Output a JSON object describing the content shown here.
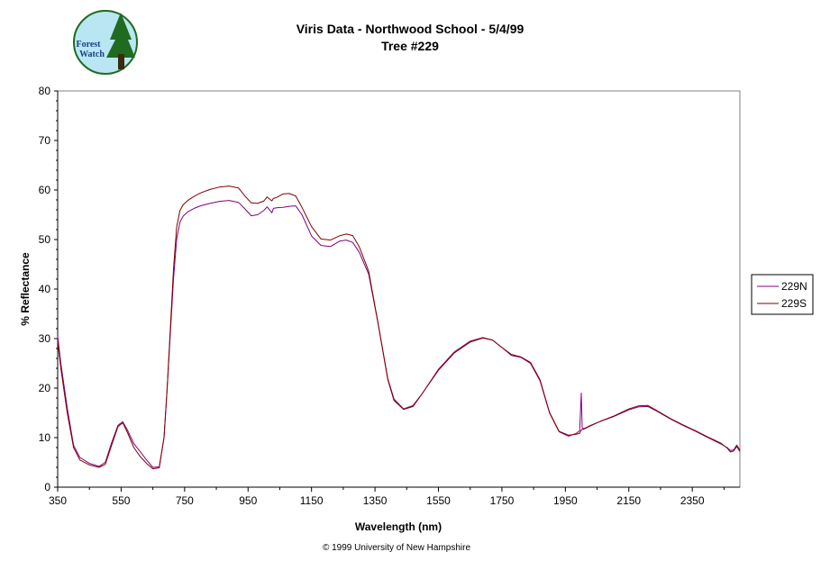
{
  "logo": {
    "line1": "Forest",
    "line2": "Watch",
    "colors": {
      "circle": "#b9e6f2",
      "tree": "#1f6b1f"
    }
  },
  "chart_data": {
    "type": "line",
    "title": "Viris Data - Northwood School - 5/4/99",
    "subtitle": "Tree #229",
    "xlabel": "Wavelength (nm)",
    "ylabel": "% Reflectance",
    "xlim": [
      350,
      2500
    ],
    "ylim": [
      0,
      80
    ],
    "xticks": [
      350,
      550,
      750,
      950,
      1150,
      1350,
      1550,
      1750,
      1950,
      2150,
      2350
    ],
    "yticks": [
      0,
      10,
      20,
      30,
      40,
      50,
      60,
      70,
      80
    ],
    "grid": false,
    "legend_position": "right",
    "series": [
      {
        "name": "229N",
        "color": "#800080",
        "x": [
          350,
          360,
          380,
          400,
          420,
          450,
          480,
          500,
          520,
          540,
          555,
          570,
          590,
          610,
          630,
          650,
          670,
          685,
          695,
          705,
          715,
          725,
          735,
          745,
          760,
          780,
          800,
          830,
          860,
          890,
          920,
          940,
          960,
          980,
          1000,
          1010,
          1025,
          1030,
          1040,
          1060,
          1080,
          1100,
          1120,
          1150,
          1180,
          1210,
          1240,
          1260,
          1280,
          1300,
          1330,
          1360,
          1390,
          1410,
          1440,
          1470,
          1500,
          1550,
          1600,
          1650,
          1690,
          1720,
          1750,
          1780,
          1810,
          1840,
          1870,
          1900,
          1930,
          1960,
          1985,
          1995,
          2000,
          2003,
          2008,
          2030,
          2060,
          2100,
          2150,
          2180,
          2210,
          2240,
          2280,
          2320,
          2360,
          2400,
          2440,
          2460,
          2470,
          2480,
          2490,
          2500
        ],
        "y": [
          30.5,
          25,
          16,
          8.5,
          6,
          4.8,
          4.2,
          5,
          9,
          12.5,
          13.2,
          11.5,
          8.8,
          7.2,
          5.5,
          4,
          4.1,
          10,
          20,
          31,
          42,
          50,
          53.5,
          54.7,
          55.6,
          56.3,
          56.8,
          57.3,
          57.7,
          57.9,
          57.5,
          56.2,
          54.8,
          55,
          55.9,
          56.6,
          55.4,
          56.3,
          56.4,
          56.5,
          56.7,
          56.8,
          55,
          50.7,
          48.8,
          48.6,
          49.7,
          49.9,
          49.4,
          47.5,
          43,
          33,
          22,
          17.8,
          15.8,
          16.5,
          19,
          23.8,
          27.3,
          29.5,
          30.2,
          29.7,
          28.2,
          26.6,
          26.2,
          25,
          21.5,
          15,
          11.2,
          10.3,
          10.9,
          11.4,
          19,
          12,
          11.8,
          12.5,
          13.3,
          14.2,
          15.6,
          16.2,
          16.3,
          15.3,
          13.8,
          12.5,
          11.3,
          10,
          8.7,
          8,
          7.4,
          7.5,
          8.5,
          7.5
        ]
      },
      {
        "name": "229S",
        "color": "#800000",
        "x": [
          350,
          360,
          380,
          400,
          420,
          450,
          480,
          500,
          520,
          540,
          555,
          570,
          590,
          610,
          630,
          650,
          670,
          685,
          695,
          705,
          715,
          725,
          735,
          745,
          760,
          780,
          800,
          830,
          860,
          890,
          920,
          940,
          960,
          980,
          1000,
          1010,
          1025,
          1030,
          1040,
          1060,
          1080,
          1100,
          1120,
          1150,
          1180,
          1210,
          1240,
          1260,
          1280,
          1300,
          1330,
          1360,
          1390,
          1410,
          1440,
          1470,
          1500,
          1550,
          1600,
          1650,
          1690,
          1720,
          1750,
          1780,
          1810,
          1840,
          1870,
          1900,
          1930,
          1960,
          1985,
          1995,
          2000,
          2003,
          2008,
          2030,
          2060,
          2100,
          2150,
          2180,
          2210,
          2240,
          2280,
          2320,
          2360,
          2400,
          2440,
          2460,
          2470,
          2480,
          2490,
          2500
        ],
        "y": [
          29.5,
          24,
          15,
          8,
          5.5,
          4.5,
          4,
          4.6,
          8.5,
          12.2,
          13,
          11,
          8,
          6.2,
          4.8,
          3.7,
          3.9,
          10,
          20,
          32,
          44,
          52.5,
          55.8,
          57,
          57.9,
          58.7,
          59.4,
          60.1,
          60.6,
          60.8,
          60.4,
          58.8,
          57.4,
          57.3,
          57.8,
          58.6,
          57.8,
          58.3,
          58.5,
          59.2,
          59.3,
          58.8,
          56.5,
          52.6,
          50.1,
          49.9,
          50.8,
          51.1,
          50.8,
          48.6,
          43.6,
          33,
          21.8,
          17.5,
          15.7,
          16.3,
          19,
          23.6,
          27.1,
          29.3,
          30.1,
          29.7,
          28.2,
          26.8,
          26.3,
          25.2,
          21.7,
          15.1,
          11.3,
          10.5,
          10.7,
          10.9,
          11.5,
          11.7,
          11.7,
          12.4,
          13.3,
          14.3,
          15.8,
          16.4,
          16.5,
          15.4,
          13.9,
          12.6,
          11.4,
          10.1,
          8.9,
          7.9,
          7.1,
          7.3,
          8.2,
          7.2
        ]
      }
    ]
  },
  "copyright": "© 1999 University of New Hampshire"
}
